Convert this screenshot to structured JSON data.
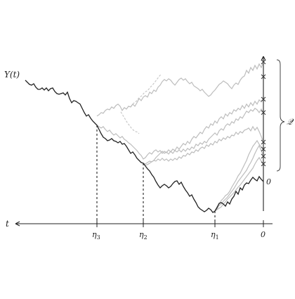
{
  "labels": {
    "process": "Y(t)",
    "time_axis": "t",
    "eta1": "η1",
    "eta2": "η2",
    "eta3": "η3",
    "zero_tick": "0",
    "zero_level": "0",
    "set": "𝒬"
  },
  "colors": {
    "main_path": "#222222",
    "branch_path": "#bdbdbd",
    "dashed_branch": "#c8c8c8",
    "axis": "#222222"
  },
  "icons": {
    "endpoint_marker": "cross-mark",
    "axis_arrow": "arrowhead",
    "set_brace": "right-curly-brace"
  }
}
